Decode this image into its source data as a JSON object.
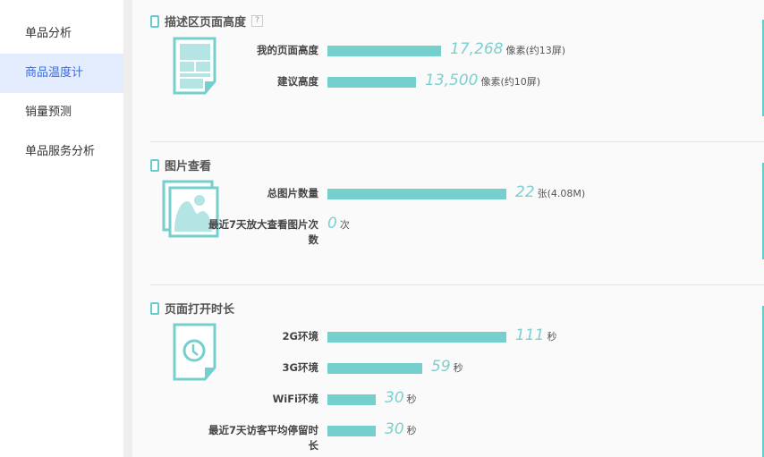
{
  "sidebar": {
    "items": [
      {
        "label": "单品分析"
      },
      {
        "label": "商品温度计",
        "active": true
      },
      {
        "label": "销量预测"
      },
      {
        "label": "单品服务分析"
      }
    ]
  },
  "accent": "#74cfcd",
  "sections": [
    {
      "title": "描述区页面高度",
      "help": "?",
      "icon": "document-layout-icon",
      "rows": [
        {
          "label": "我的页面高度",
          "value": 17268,
          "display": "17,268",
          "unit": "像素(约13屏)"
        },
        {
          "label": "建议高度",
          "value": 13500,
          "display": "13,500",
          "unit": "像素(约10屏)"
        }
      ]
    },
    {
      "title": "图片查看",
      "icon": "image-gallery-icon",
      "rows": [
        {
          "label": "总图片数量",
          "value": 22,
          "display": "22",
          "unit": "张(4.08M)"
        },
        {
          "label": "最近7天放大查看图片次数",
          "value": 0,
          "display": "0",
          "unit": "次"
        }
      ]
    },
    {
      "title": "页面打开时长",
      "icon": "clock-document-icon",
      "rows": [
        {
          "label": "2G环境",
          "value": 111,
          "display": "111",
          "unit": "秒"
        },
        {
          "label": "3G环境",
          "value": 59,
          "display": "59",
          "unit": "秒"
        },
        {
          "label": "WiFi环境",
          "value": 30,
          "display": "30",
          "unit": "秒"
        },
        {
          "label": "最近7天访客平均停留时长",
          "value": 30,
          "display": "30",
          "unit": "秒"
        }
      ]
    }
  ]
}
